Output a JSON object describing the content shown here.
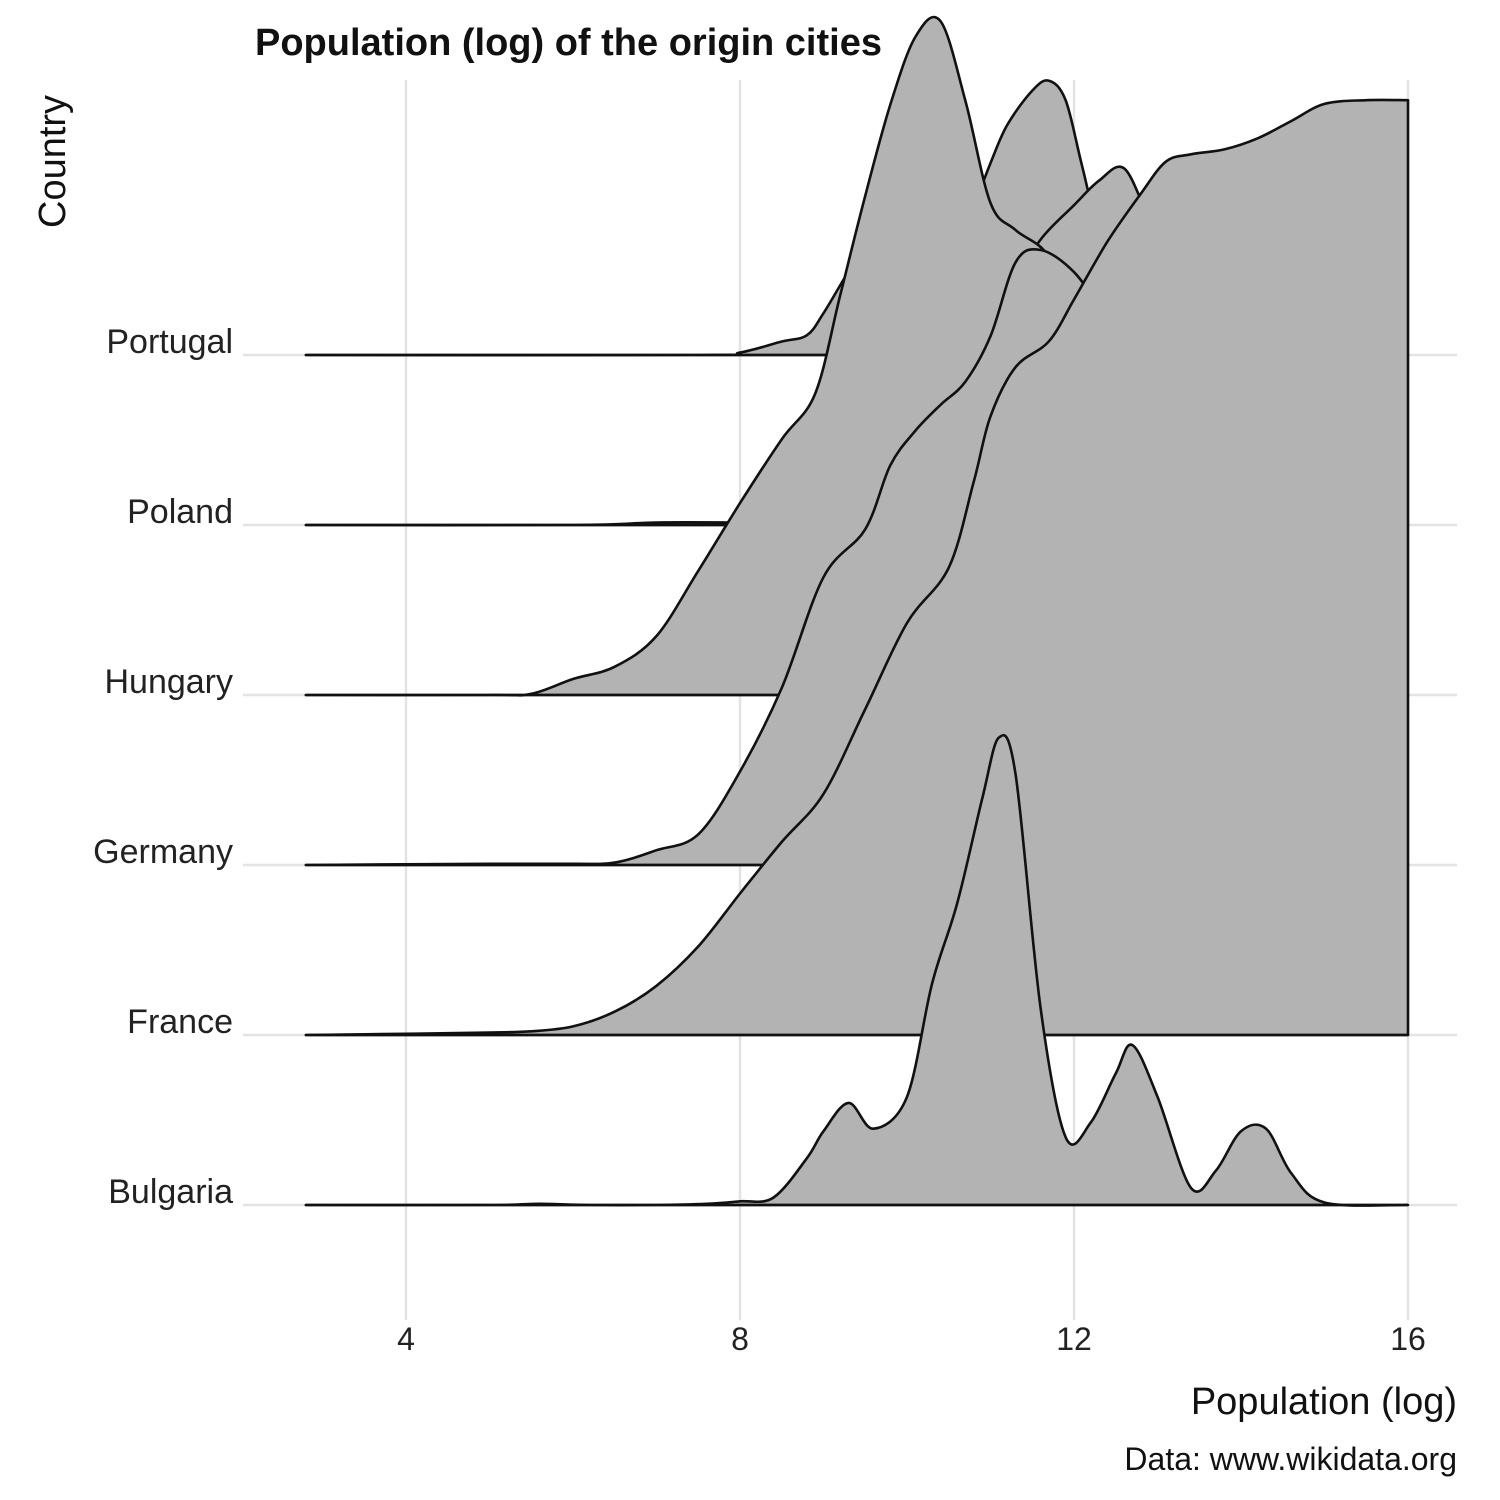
{
  "chart_data": {
    "type": "ridgeline",
    "title": "Population (log) of the origin cities",
    "xlabel": "Population (log)",
    "ylabel": "Country",
    "caption": "Data: www.wikidata.org",
    "xlim": [
      2.8,
      16
    ],
    "xticks": [
      4,
      8,
      12,
      16
    ],
    "grid": true,
    "fill_color": "#b3b3b3",
    "line_color": "#111111",
    "categories": [
      "Portugal",
      "Poland",
      "Hungary",
      "Germany",
      "France",
      "Bulgaria"
    ],
    "series": [
      {
        "name": "Portugal",
        "x": [
          2.8,
          7.5,
          8.0,
          8.5,
          8.8,
          9.0,
          9.3,
          9.5,
          9.7,
          9.9,
          10.2,
          10.5,
          10.8,
          11.0,
          11.2,
          11.5,
          11.7,
          11.9,
          12.1,
          12.4,
          12.7,
          12.9,
          13.1,
          13.3,
          13.5,
          13.8,
          14.1,
          14.5,
          16.0
        ],
        "y": [
          0,
          0,
          0.02,
          0.11,
          0.16,
          0.34,
          0.68,
          0.87,
          0.75,
          0.49,
          0.39,
          0.73,
          1.21,
          1.56,
          1.87,
          2.15,
          2.23,
          2.07,
          1.53,
          0.74,
          0.65,
          1.0,
          1.3,
          0.88,
          0.45,
          0.14,
          0.05,
          0,
          0
        ]
      },
      {
        "name": "Poland",
        "x": [
          2.8,
          6.0,
          7.0,
          8.0,
          8.5,
          9.0,
          9.4,
          9.8,
          10.1,
          10.5,
          10.8,
          11.0,
          11.3,
          11.6,
          12.0,
          12.3,
          12.6,
          12.9,
          13.2,
          13.5,
          13.8,
          14.0,
          14.2,
          14.4,
          14.6,
          14.9,
          15.2,
          16.0
        ],
        "y": [
          0,
          0,
          0.02,
          0.02,
          0.02,
          0.04,
          0.26,
          0.87,
          1.25,
          1.42,
          1.15,
          1.26,
          1.97,
          2.32,
          2.6,
          2.8,
          2.9,
          2.5,
          2.2,
          1.9,
          0.9,
          0.48,
          0.5,
          0.52,
          0.38,
          0.12,
          0.02,
          0
        ]
      },
      {
        "name": "Hungary",
        "x": [
          2.8,
          5.0,
          5.5,
          6.0,
          6.5,
          7.0,
          7.5,
          8.0,
          8.5,
          8.9,
          9.2,
          9.5,
          9.8,
          10.1,
          10.4,
          10.7,
          11.0,
          11.3,
          11.7,
          12.0,
          12.3,
          12.6,
          12.9,
          13.2,
          13.5,
          13.8,
          14.1,
          14.4,
          14.7,
          15.1,
          16.0
        ],
        "y": [
          0,
          0,
          0.01,
          0.13,
          0.23,
          0.48,
          1.01,
          1.56,
          2.08,
          2.45,
          3.25,
          4.06,
          4.8,
          5.35,
          5.48,
          4.83,
          4.0,
          3.78,
          3.56,
          2.99,
          2.4,
          1.2,
          0.28,
          0.02,
          0.01,
          0.01,
          0.01,
          0.34,
          0.51,
          0.18,
          0
        ]
      },
      {
        "name": "Germany",
        "x": [
          2.8,
          5.0,
          6.0,
          6.5,
          7.0,
          7.5,
          8.0,
          8.5,
          9.0,
          9.5,
          9.8,
          10.1,
          10.4,
          10.7,
          11.0,
          11.3,
          11.6,
          12.0,
          12.4,
          12.8,
          13.1,
          13.4,
          13.7,
          14.0,
          14.5,
          15.0,
          15.5,
          16.0
        ],
        "y": [
          0,
          0.01,
          0.01,
          0.02,
          0.12,
          0.25,
          0.76,
          1.44,
          2.34,
          2.73,
          3.25,
          3.53,
          3.74,
          3.93,
          4.3,
          4.9,
          5.0,
          4.82,
          4.45,
          4.08,
          3.5,
          3.0,
          2.41,
          1.9,
          1.6,
          1.02,
          0.5,
          0
        ]
      },
      {
        "name": "France",
        "x": [
          2.8,
          4.0,
          5.0,
          5.5,
          6.0,
          6.5,
          7.0,
          7.5,
          8.0,
          8.5,
          9.0,
          9.5,
          10.0,
          10.5,
          10.8,
          11.0,
          11.3,
          11.7,
          12.0,
          12.4,
          12.8,
          13.1,
          13.4,
          13.8,
          14.2,
          14.6,
          15.0,
          15.5,
          16.0
        ],
        "y": [
          0,
          0.01,
          0.02,
          0.03,
          0.07,
          0.19,
          0.4,
          0.72,
          1.15,
          1.57,
          1.96,
          2.65,
          3.35,
          3.8,
          4.5,
          5.03,
          5.43,
          5.64,
          5.98,
          6.45,
          6.84,
          7.1,
          7.16,
          7.2,
          7.29,
          7.43,
          7.57,
          7.6,
          7.6
        ]
      },
      {
        "name": "Bulgaria",
        "x": [
          2.8,
          5.0,
          5.6,
          6.2,
          7.0,
          7.6,
          8.0,
          8.4,
          8.8,
          9.0,
          9.3,
          9.6,
          10.0,
          10.3,
          10.6,
          10.9,
          11.1,
          11.3,
          11.6,
          11.9,
          12.2,
          12.5,
          12.7,
          13.0,
          13.4,
          13.7,
          14.0,
          14.3,
          14.6,
          15.0,
          16.0
        ],
        "y": [
          0,
          0,
          0.01,
          0,
          0,
          0.01,
          0.03,
          0.06,
          0.38,
          0.6,
          0.83,
          0.62,
          0.88,
          1.8,
          2.45,
          3.3,
          3.8,
          3.5,
          1.6,
          0.55,
          0.67,
          1.07,
          1.3,
          0.88,
          0.14,
          0.28,
          0.6,
          0.62,
          0.26,
          0.02,
          0
        ]
      }
    ]
  }
}
